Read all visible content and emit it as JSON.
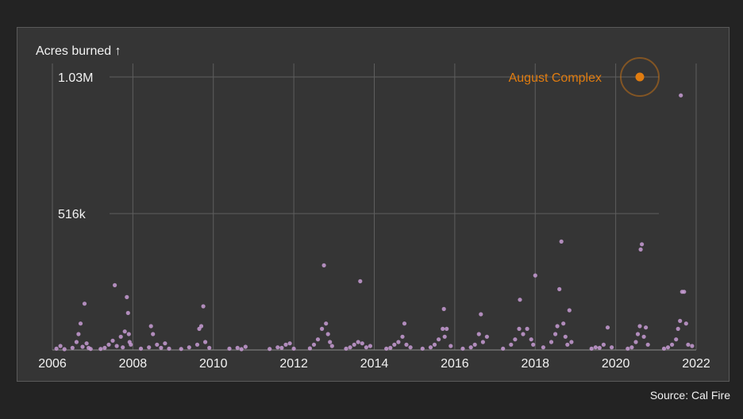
{
  "source": "Source: Cal Fire",
  "colors": {
    "background": "#232323",
    "panel": "#353535",
    "point": "#c79bd4",
    "highlight": "#e07c10",
    "grid": "#5e5e5e",
    "text": "#f2f2f2"
  },
  "chart_data": {
    "type": "scatter",
    "title": "",
    "ylabel": "Acres burned ↑",
    "xlabel": "",
    "xlim": [
      2006,
      2022
    ],
    "ylim": [
      0,
      1032648
    ],
    "x_ticks": [
      "2006",
      "2008",
      "2010",
      "2012",
      "2014",
      "2016",
      "2018",
      "2020",
      "2022"
    ],
    "y_ticks": [
      {
        "value": 516000,
        "label": "516k"
      },
      {
        "value": 1032648,
        "label": "1.03M"
      }
    ],
    "grid": "vertical lines at each year, horizontal lines at labeled y ticks",
    "annotation": {
      "label": "August Complex",
      "x": 2020.63,
      "y": 1032648
    },
    "series": [
      {
        "points": [
          [
            2006.1,
            5000
          ],
          [
            2006.2,
            15000
          ],
          [
            2006.3,
            3000
          ],
          [
            2006.5,
            8000
          ],
          [
            2006.6,
            30000
          ],
          [
            2006.65,
            60000
          ],
          [
            2006.7,
            100000
          ],
          [
            2006.75,
            12000
          ],
          [
            2006.8,
            175000
          ],
          [
            2006.85,
            25000
          ],
          [
            2006.9,
            8000
          ],
          [
            2006.95,
            4000
          ],
          [
            2007.2,
            4000
          ],
          [
            2007.3,
            8000
          ],
          [
            2007.4,
            20000
          ],
          [
            2007.5,
            35000
          ],
          [
            2007.55,
            245000
          ],
          [
            2007.6,
            15000
          ],
          [
            2007.7,
            50000
          ],
          [
            2007.75,
            10000
          ],
          [
            2007.8,
            70000
          ],
          [
            2007.85,
            200000
          ],
          [
            2007.88,
            140000
          ],
          [
            2007.9,
            60000
          ],
          [
            2007.92,
            30000
          ],
          [
            2007.95,
            20000
          ],
          [
            2008.2,
            5000
          ],
          [
            2008.4,
            10000
          ],
          [
            2008.45,
            90000
          ],
          [
            2008.5,
            60000
          ],
          [
            2008.6,
            20000
          ],
          [
            2008.7,
            8000
          ],
          [
            2008.8,
            25000
          ],
          [
            2008.9,
            5000
          ],
          [
            2009.2,
            4000
          ],
          [
            2009.4,
            10000
          ],
          [
            2009.6,
            20000
          ],
          [
            2009.65,
            80000
          ],
          [
            2009.7,
            90000
          ],
          [
            2009.75,
            165000
          ],
          [
            2009.8,
            30000
          ],
          [
            2009.9,
            8000
          ],
          [
            2010.4,
            5000
          ],
          [
            2010.6,
            8000
          ],
          [
            2010.7,
            3000
          ],
          [
            2010.8,
            12000
          ],
          [
            2011.4,
            4000
          ],
          [
            2011.6,
            10000
          ],
          [
            2011.7,
            8000
          ],
          [
            2011.8,
            20000
          ],
          [
            2011.9,
            25000
          ],
          [
            2012.0,
            5000
          ],
          [
            2012.4,
            6000
          ],
          [
            2012.5,
            20000
          ],
          [
            2012.6,
            40000
          ],
          [
            2012.7,
            80000
          ],
          [
            2012.75,
            320000
          ],
          [
            2012.8,
            100000
          ],
          [
            2012.85,
            60000
          ],
          [
            2012.9,
            30000
          ],
          [
            2012.95,
            15000
          ],
          [
            2013.3,
            5000
          ],
          [
            2013.4,
            10000
          ],
          [
            2013.5,
            20000
          ],
          [
            2013.6,
            30000
          ],
          [
            2013.65,
            260000
          ],
          [
            2013.7,
            25000
          ],
          [
            2013.8,
            10000
          ],
          [
            2013.9,
            15000
          ],
          [
            2014.3,
            5000
          ],
          [
            2014.4,
            8000
          ],
          [
            2014.5,
            20000
          ],
          [
            2014.6,
            30000
          ],
          [
            2014.7,
            50000
          ],
          [
            2014.75,
            100000
          ],
          [
            2014.8,
            20000
          ],
          [
            2014.9,
            10000
          ],
          [
            2015.2,
            5000
          ],
          [
            2015.4,
            10000
          ],
          [
            2015.5,
            20000
          ],
          [
            2015.6,
            40000
          ],
          [
            2015.7,
            80000
          ],
          [
            2015.73,
            155000
          ],
          [
            2015.75,
            50000
          ],
          [
            2015.8,
            80000
          ],
          [
            2015.9,
            15000
          ],
          [
            2016.2,
            5000
          ],
          [
            2016.4,
            10000
          ],
          [
            2016.5,
            20000
          ],
          [
            2016.6,
            60000
          ],
          [
            2016.65,
            135000
          ],
          [
            2016.7,
            30000
          ],
          [
            2016.8,
            50000
          ],
          [
            2017.2,
            5000
          ],
          [
            2017.4,
            20000
          ],
          [
            2017.5,
            40000
          ],
          [
            2017.6,
            80000
          ],
          [
            2017.62,
            190000
          ],
          [
            2017.7,
            60000
          ],
          [
            2017.8,
            80000
          ],
          [
            2017.9,
            40000
          ],
          [
            2017.95,
            20000
          ],
          [
            2018.0,
            282000
          ],
          [
            2018.2,
            10000
          ],
          [
            2018.4,
            30000
          ],
          [
            2018.5,
            60000
          ],
          [
            2018.55,
            90000
          ],
          [
            2018.6,
            230000
          ],
          [
            2018.65,
            410000
          ],
          [
            2018.7,
            100000
          ],
          [
            2018.75,
            50000
          ],
          [
            2018.8,
            20000
          ],
          [
            2018.85,
            150000
          ],
          [
            2018.9,
            30000
          ],
          [
            2019.4,
            5000
          ],
          [
            2019.5,
            10000
          ],
          [
            2019.6,
            8000
          ],
          [
            2019.7,
            20000
          ],
          [
            2019.8,
            85000
          ],
          [
            2019.9,
            10000
          ],
          [
            2020.3,
            5000
          ],
          [
            2020.4,
            10000
          ],
          [
            2020.5,
            30000
          ],
          [
            2020.55,
            60000
          ],
          [
            2020.6,
            90000
          ],
          [
            2020.62,
            380000
          ],
          [
            2020.65,
            400000
          ],
          [
            2020.7,
            50000
          ],
          [
            2020.75,
            85000
          ],
          [
            2020.8,
            20000
          ],
          [
            2021.2,
            5000
          ],
          [
            2021.3,
            10000
          ],
          [
            2021.4,
            20000
          ],
          [
            2021.5,
            40000
          ],
          [
            2021.55,
            80000
          ],
          [
            2021.6,
            110000
          ],
          [
            2021.62,
            963000
          ],
          [
            2021.65,
            220000
          ],
          [
            2021.7,
            220000
          ],
          [
            2021.75,
            100000
          ],
          [
            2021.8,
            20000
          ],
          [
            2021.9,
            15000
          ]
        ]
      }
    ]
  }
}
